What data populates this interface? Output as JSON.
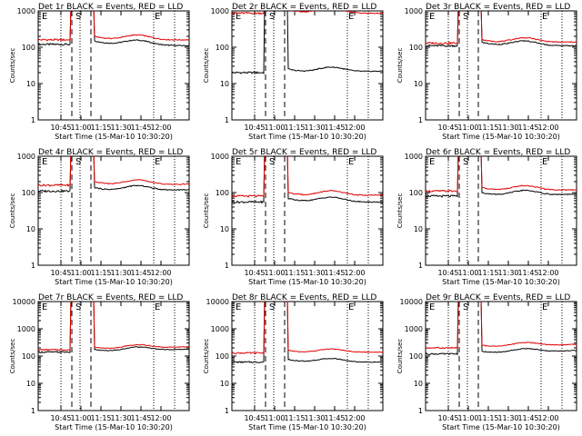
{
  "ylabel": "Counts/sec",
  "xlabel": "Start Time (15-Mar-10 10:30:20)",
  "xticks": [
    "10:45",
    "11:00",
    "11:15",
    "11:30",
    "11:45",
    "12:00"
  ],
  "marker_letters": {
    "start": "E",
    "mid": "S",
    "end": "E"
  },
  "colors": {
    "events": "#000000",
    "lld": "#e00000"
  },
  "chart_data": [
    {
      "type": "line",
      "title": "Det 1r BLACK = Events, RED = LLD",
      "ylim": [
        1,
        1000
      ],
      "yticks": [
        "1",
        "10",
        "100",
        "1000"
      ],
      "log_y": true,
      "series": [
        {
          "name": "BLACK = Events",
          "base": 120,
          "tail": 110
        },
        {
          "name": "RED = LLD",
          "base": 160,
          "tail": 160
        }
      ]
    },
    {
      "type": "line",
      "title": "Det 2r BLACK = Events, RED = LLD",
      "ylim": [
        1,
        1000
      ],
      "yticks": [
        "1",
        "10",
        "100",
        "1000"
      ],
      "log_y": true,
      "series": [
        {
          "name": "BLACK = Events",
          "base": 20,
          "tail": 22
        },
        {
          "name": "RED = LLD",
          "base": 870,
          "tail": 860
        }
      ]
    },
    {
      "type": "line",
      "title": "Det 3r BLACK = Events, RED = LLD",
      "ylim": [
        1,
        1000
      ],
      "yticks": [
        "1",
        "10",
        "100",
        "1000"
      ],
      "log_y": true,
      "series": [
        {
          "name": "BLACK = Events",
          "base": 110,
          "tail": 110
        },
        {
          "name": "RED = LLD",
          "base": 130,
          "tail": 140
        }
      ]
    },
    {
      "type": "line",
      "title": "Det 4r BLACK = Events, RED = LLD",
      "ylim": [
        1,
        1000
      ],
      "yticks": [
        "1",
        "10",
        "100",
        "1000"
      ],
      "log_y": true,
      "series": [
        {
          "name": "BLACK = Events",
          "base": 110,
          "tail": 120
        },
        {
          "name": "RED = LLD",
          "base": 160,
          "tail": 170
        }
      ]
    },
    {
      "type": "line",
      "title": "Det 5r BLACK = Events, RED = LLD",
      "ylim": [
        1,
        1000
      ],
      "yticks": [
        "1",
        "10",
        "100",
        "1000"
      ],
      "log_y": true,
      "series": [
        {
          "name": "BLACK = Events",
          "base": 55,
          "tail": 55
        },
        {
          "name": "RED = LLD",
          "base": 80,
          "tail": 85
        }
      ]
    },
    {
      "type": "line",
      "title": "Det 6r BLACK = Events, RED = LLD",
      "ylim": [
        1,
        1000
      ],
      "yticks": [
        "1",
        "10",
        "100",
        "1000"
      ],
      "log_y": true,
      "series": [
        {
          "name": "BLACK = Events",
          "base": 80,
          "tail": 90
        },
        {
          "name": "RED = LLD",
          "base": 110,
          "tail": 120
        }
      ]
    },
    {
      "type": "line",
      "title": "Det 7r BLACK = Events, RED = LLD",
      "ylim": [
        1,
        10000
      ],
      "yticks": [
        "1",
        "10",
        "100",
        "1000",
        "10000"
      ],
      "log_y": true,
      "series": [
        {
          "name": "BLACK = Events",
          "base": 140,
          "tail": 180
        },
        {
          "name": "RED = LLD",
          "base": 170,
          "tail": 220
        }
      ]
    },
    {
      "type": "line",
      "title": "Det 8r BLACK = Events, RED = LLD",
      "ylim": [
        1,
        10000
      ],
      "yticks": [
        "1",
        "10",
        "100",
        "1000",
        "10000"
      ],
      "log_y": true,
      "series": [
        {
          "name": "BLACK = Events",
          "base": 60,
          "tail": 60
        },
        {
          "name": "RED = LLD",
          "base": 130,
          "tail": 140
        }
      ]
    },
    {
      "type": "line",
      "title": "Det 9r BLACK = Events, RED = LLD",
      "ylim": [
        1,
        10000
      ],
      "yticks": [
        "1",
        "10",
        "100",
        "1000",
        "10000"
      ],
      "log_y": true,
      "series": [
        {
          "name": "BLACK = Events",
          "base": 120,
          "tail": 160
        },
        {
          "name": "RED = LLD",
          "base": 200,
          "tail": 270
        }
      ]
    }
  ]
}
